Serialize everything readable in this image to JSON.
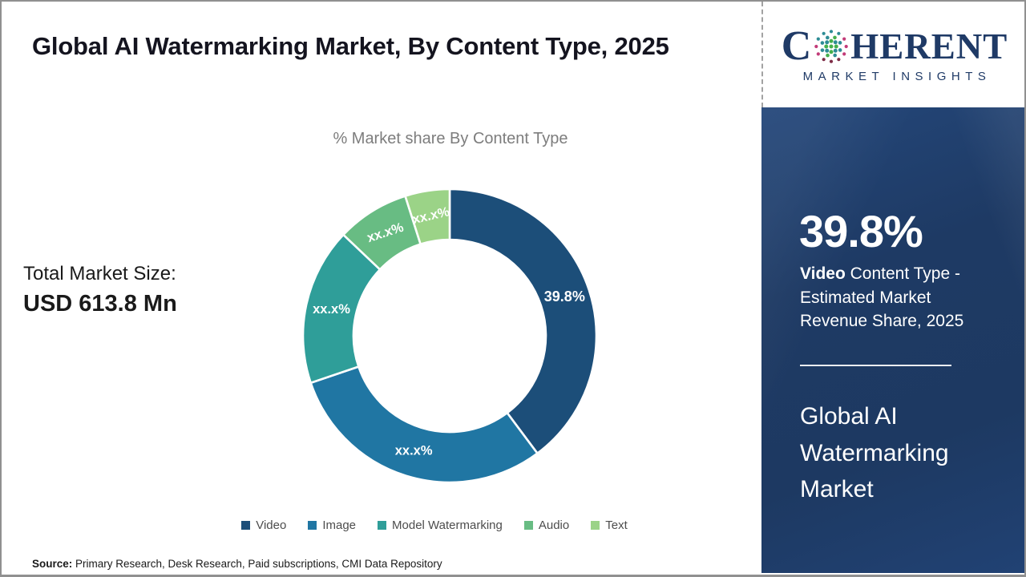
{
  "header": {
    "title": "Global AI Watermarking Market, By Content Type, 2025"
  },
  "left_panel": {
    "total_label": "Total Market Size:",
    "total_value": "USD 613.8 Mn"
  },
  "chart_data": {
    "type": "pie",
    "donut": true,
    "title": "% Market share By Content Type",
    "start_angle_deg": 0,
    "direction": "clockwise",
    "inner_ratio": 0.655,
    "legend_position": "bottom",
    "slices": [
      {
        "label": "Video",
        "value": 39.8,
        "display_value": "39.8%",
        "color": "#1c4e79"
      },
      {
        "label": "Image",
        "value": 30.0,
        "display_value": "xx.x%",
        "color": "#2076a3"
      },
      {
        "label": "Model Watermarking",
        "value": 17.3,
        "display_value": "xx.x%",
        "color": "#2f9e99"
      },
      {
        "label": "Audio",
        "value": 8.0,
        "display_value": "xx.x%",
        "color": "#68bc83"
      },
      {
        "label": "Text",
        "value": 4.9,
        "display_value": "xx.x%",
        "color": "#9bd387"
      }
    ]
  },
  "sidebar": {
    "stat_value": "39.8%",
    "stat_desc_bold": "Video",
    "stat_desc_rest": " Content Type - Estimated Market Revenue Share, 2025",
    "footer_title": "Global AI Watermarking Market",
    "bg_color": "#1e3a64"
  },
  "brand": {
    "name_prefix": "C",
    "name_suffix": "HERENT",
    "tagline": "MARKET INSIGHTS",
    "globe_icon": "dotted-globe",
    "colors": {
      "navy": "#1f3a66",
      "teal": "#2d8c95",
      "green": "#44b04c",
      "magenta": "#c23b78",
      "maroon": "#7e2d47"
    }
  },
  "source": {
    "label": "Source:",
    "text": " Primary Research, Desk Research, Paid subscriptions, CMI Data Repository"
  }
}
